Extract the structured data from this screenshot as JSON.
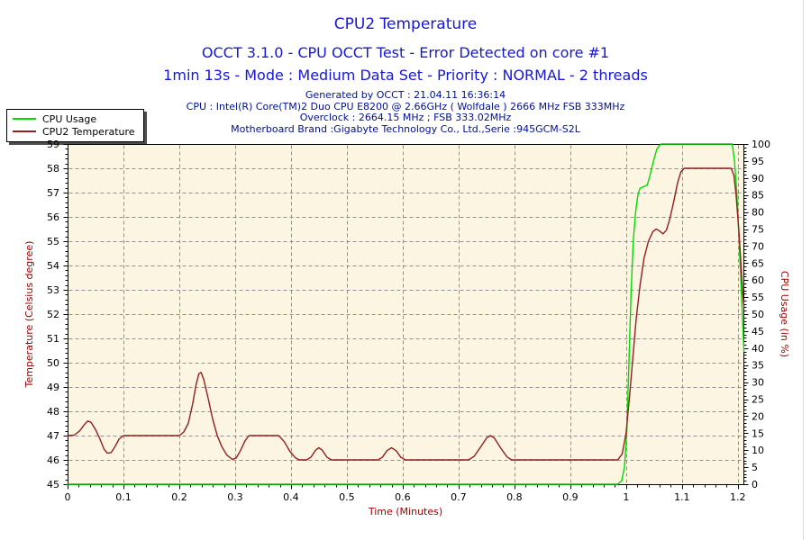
{
  "header": {
    "title": "CPU2 Temperature",
    "subtitle1": "OCCT 3.1.0 - CPU OCCT Test - Error Detected on core #1",
    "subtitle2": "1min 13s - Mode : Medium Data Set - Priority : NORMAL - 2 threads",
    "info_lines": [
      "Generated by OCCT : 21.04.11 16:36:14",
      "CPU : Intel(R) Core(TM)2 Duo CPU E8200 @ 2.66GHz ( Wolfdale ) 2666 MHz FSB 333MHz",
      "Overclock : 2664.15 MHz ; FSB 333.02MHz",
      "Motherboard Brand :Gigabyte Technology Co., Ltd.,Serie :945GCM-S2L"
    ],
    "title_color": "#1717d6",
    "info_color": "#000f96"
  },
  "legend": {
    "position": "top-left",
    "items": [
      {
        "label": "CPU Usage",
        "color": "#00dc00"
      },
      {
        "label": "CPU2 Temperature",
        "color": "#931f1f"
      }
    ]
  },
  "chart_data": {
    "type": "line",
    "title": "CPU2 Temperature",
    "xlabel": "Time (Minutes)",
    "ylabel_left": "Temperature (Celsius degree)",
    "ylabel_right": "CPU Usage (in %)",
    "xlim": [
      0,
      1.21
    ],
    "ylim_left": [
      45,
      59
    ],
    "ylim_right": [
      0,
      100
    ],
    "x_ticks": [
      0,
      0.1,
      0.2,
      0.3,
      0.4,
      0.5,
      0.6,
      0.7,
      0.8,
      0.9,
      1,
      1.1,
      1.2
    ],
    "x_minor_step": 0.02,
    "y_ticks_left": [
      45,
      46,
      47,
      48,
      49,
      50,
      51,
      52,
      53,
      54,
      55,
      56,
      57,
      58,
      59
    ],
    "y_minor_step_left": 0.2,
    "y_ticks_right": [
      0,
      5,
      10,
      15,
      20,
      25,
      30,
      35,
      40,
      45,
      50,
      55,
      60,
      65,
      70,
      75,
      80,
      85,
      90,
      95,
      100
    ],
    "y_minor_step_right": 1,
    "grid": true,
    "grid_color": "#909090",
    "plot_bg": "#fcf5e2",
    "axis_color": "#000000",
    "label_color": "#9a0000",
    "series": [
      {
        "name": "CPU Usage",
        "axis": "right",
        "color": "#00dc00",
        "points": [
          [
            0,
            0
          ],
          [
            0.3,
            0
          ],
          [
            0.6,
            0
          ],
          [
            0.9,
            0
          ],
          [
            0.985,
            0
          ],
          [
            0.992,
            1
          ],
          [
            0.997,
            5
          ],
          [
            1.001,
            15
          ],
          [
            1.005,
            35
          ],
          [
            1.009,
            57
          ],
          [
            1.013,
            72
          ],
          [
            1.017,
            80
          ],
          [
            1.021,
            85
          ],
          [
            1.025,
            87
          ],
          [
            1.032,
            87.5
          ],
          [
            1.038,
            88
          ],
          [
            1.043,
            91
          ],
          [
            1.049,
            95
          ],
          [
            1.055,
            98.5
          ],
          [
            1.062,
            100
          ],
          [
            1.1,
            100
          ],
          [
            1.15,
            100
          ],
          [
            1.19,
            100
          ],
          [
            1.194,
            95
          ],
          [
            1.198,
            86
          ],
          [
            1.202,
            73
          ],
          [
            1.206,
            58
          ],
          [
            1.209,
            46
          ],
          [
            1.211,
            39
          ]
        ]
      },
      {
        "name": "CPU2 Temperature",
        "axis": "left",
        "color": "#931f1f",
        "points": [
          [
            0,
            47
          ],
          [
            0.012,
            47.02
          ],
          [
            0.022,
            47.2
          ],
          [
            0.03,
            47.45
          ],
          [
            0.036,
            47.6
          ],
          [
            0.042,
            47.55
          ],
          [
            0.05,
            47.25
          ],
          [
            0.058,
            46.85
          ],
          [
            0.065,
            46.45
          ],
          [
            0.071,
            46.28
          ],
          [
            0.078,
            46.3
          ],
          [
            0.085,
            46.55
          ],
          [
            0.092,
            46.85
          ],
          [
            0.1,
            47
          ],
          [
            0.13,
            47
          ],
          [
            0.16,
            47
          ],
          [
            0.2,
            47
          ],
          [
            0.208,
            47.15
          ],
          [
            0.216,
            47.5
          ],
          [
            0.224,
            48.3
          ],
          [
            0.23,
            49.1
          ],
          [
            0.235,
            49.55
          ],
          [
            0.239,
            49.6
          ],
          [
            0.244,
            49.3
          ],
          [
            0.252,
            48.5
          ],
          [
            0.26,
            47.65
          ],
          [
            0.268,
            47
          ],
          [
            0.276,
            46.55
          ],
          [
            0.285,
            46.2
          ],
          [
            0.295,
            46.02
          ],
          [
            0.302,
            46.08
          ],
          [
            0.31,
            46.4
          ],
          [
            0.318,
            46.8
          ],
          [
            0.325,
            47
          ],
          [
            0.36,
            47
          ],
          [
            0.378,
            47
          ],
          [
            0.388,
            46.75
          ],
          [
            0.398,
            46.35
          ],
          [
            0.408,
            46.08
          ],
          [
            0.415,
            46
          ],
          [
            0.428,
            46
          ],
          [
            0.436,
            46.12
          ],
          [
            0.444,
            46.4
          ],
          [
            0.45,
            46.5
          ],
          [
            0.456,
            46.4
          ],
          [
            0.464,
            46.12
          ],
          [
            0.472,
            46
          ],
          [
            0.52,
            46
          ],
          [
            0.556,
            46
          ],
          [
            0.564,
            46.12
          ],
          [
            0.572,
            46.38
          ],
          [
            0.58,
            46.5
          ],
          [
            0.588,
            46.38
          ],
          [
            0.597,
            46.1
          ],
          [
            0.605,
            46
          ],
          [
            0.65,
            46
          ],
          [
            0.7,
            46
          ],
          [
            0.718,
            46
          ],
          [
            0.728,
            46.15
          ],
          [
            0.74,
            46.55
          ],
          [
            0.75,
            46.9
          ],
          [
            0.757,
            47
          ],
          [
            0.764,
            46.9
          ],
          [
            0.775,
            46.5
          ],
          [
            0.787,
            46.12
          ],
          [
            0.795,
            46
          ],
          [
            0.85,
            46
          ],
          [
            0.9,
            46
          ],
          [
            0.96,
            46
          ],
          [
            0.985,
            46
          ],
          [
            0.993,
            46.25
          ],
          [
            1,
            47.1
          ],
          [
            1.006,
            48.6
          ],
          [
            1.012,
            50.2
          ],
          [
            1.018,
            51.8
          ],
          [
            1.025,
            53.2
          ],
          [
            1.032,
            54.3
          ],
          [
            1.04,
            55
          ],
          [
            1.048,
            55.4
          ],
          [
            1.054,
            55.5
          ],
          [
            1.06,
            55.42
          ],
          [
            1.066,
            55.3
          ],
          [
            1.072,
            55.45
          ],
          [
            1.078,
            55.9
          ],
          [
            1.085,
            56.6
          ],
          [
            1.092,
            57.4
          ],
          [
            1.098,
            57.85
          ],
          [
            1.104,
            58
          ],
          [
            1.15,
            58
          ],
          [
            1.188,
            58
          ],
          [
            1.193,
            57.7
          ],
          [
            1.197,
            56.9
          ],
          [
            1.202,
            55.4
          ],
          [
            1.206,
            53.9
          ],
          [
            1.209,
            52.8
          ],
          [
            1.211,
            52.3
          ]
        ]
      }
    ]
  }
}
